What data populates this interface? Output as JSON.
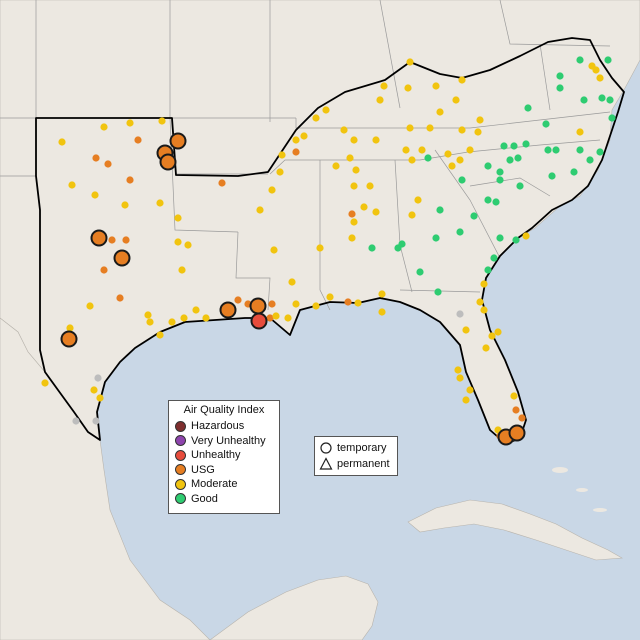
{
  "map": {
    "region": "Southeastern United States",
    "legend_aqi": {
      "title": "Air Quality Index",
      "items": [
        {
          "label": "Hazardous",
          "color": "#7e2e2e"
        },
        {
          "label": "Very Unhealthy",
          "color": "#8e44ad"
        },
        {
          "label": "Unhealthy",
          "color": "#e74c3c"
        },
        {
          "label": "USG",
          "color": "#e67e22"
        },
        {
          "label": "Moderate",
          "color": "#f1c40f"
        },
        {
          "label": "Good",
          "color": "#2ecc71"
        }
      ]
    },
    "legend_shape": {
      "items": [
        {
          "label": "temporary",
          "shape": "circle"
        },
        {
          "label": "permanent",
          "shape": "triangle"
        }
      ]
    },
    "colors": {
      "ocean": "#c9d7e6",
      "land": "#ece8e1",
      "unmonitored_site": "#bdbdbd",
      "state_border": "#9a9a9a",
      "region_border": "#000000"
    }
  }
}
